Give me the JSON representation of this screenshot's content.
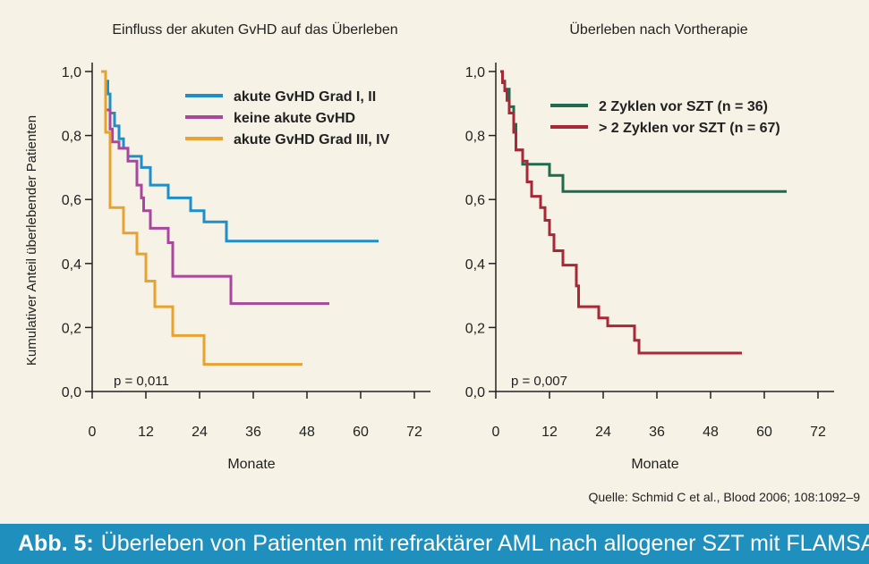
{
  "chart_data": [
    {
      "type": "line",
      "step": true,
      "title": "Einfluss der akuten GvHD auf das Überleben",
      "xlabel": "Monate",
      "ylabel": "Kumulativer Anteil überlebender Patienten",
      "xlim": [
        0,
        72
      ],
      "ylim": [
        0,
        1
      ],
      "xticks": [
        "0",
        "12",
        "24",
        "36",
        "48",
        "60",
        "72"
      ],
      "yticks": [
        "0,0",
        "0,2",
        "0,4",
        "0,6",
        "0,8",
        "1,0"
      ],
      "legend_position": "top-right",
      "annotation": "p = 0,011",
      "series": [
        {
          "name": "akute GvHD Grad I, II",
          "color": "#1f8fc8",
          "points": [
            [
              2,
              1.0
            ],
            [
              3,
              0.97
            ],
            [
              3.5,
              0.93
            ],
            [
              4,
              0.87
            ],
            [
              5,
              0.83
            ],
            [
              6,
              0.79
            ],
            [
              7,
              0.76
            ],
            [
              8,
              0.735
            ],
            [
              11,
              0.7
            ],
            [
              13,
              0.645
            ],
            [
              17,
              0.605
            ],
            [
              22,
              0.565
            ],
            [
              25,
              0.53
            ],
            [
              30,
              0.47
            ],
            [
              64,
              0.47
            ]
          ]
        },
        {
          "name": "keine akute GvHD",
          "color": "#a9479e",
          "points": [
            [
              2.5,
              1.0
            ],
            [
              3,
              0.88
            ],
            [
              4,
              0.82
            ],
            [
              4.5,
              0.78
            ],
            [
              6,
              0.76
            ],
            [
              8,
              0.72
            ],
            [
              10,
              0.645
            ],
            [
              11,
              0.605
            ],
            [
              11.5,
              0.565
            ],
            [
              13,
              0.51
            ],
            [
              17,
              0.465
            ],
            [
              18,
              0.36
            ],
            [
              31,
              0.275
            ],
            [
              53,
              0.275
            ]
          ]
        },
        {
          "name": "akute GvHD Grad III, IV",
          "color": "#e8a22f",
          "points": [
            [
              2,
              1.0
            ],
            [
              3,
              0.81
            ],
            [
              4,
              0.575
            ],
            [
              7,
              0.495
            ],
            [
              10,
              0.43
            ],
            [
              12,
              0.345
            ],
            [
              14,
              0.265
            ],
            [
              18,
              0.175
            ],
            [
              25,
              0.085
            ],
            [
              47,
              0.085
            ]
          ]
        }
      ]
    },
    {
      "type": "line",
      "step": true,
      "title": "Überleben nach Vortherapie",
      "xlabel": "Monate",
      "ylabel": "",
      "xlim": [
        0,
        72
      ],
      "ylim": [
        0,
        1
      ],
      "xticks": [
        "0",
        "12",
        "24",
        "36",
        "48",
        "60",
        "72"
      ],
      "yticks": [
        "0,0",
        "0,2",
        "0,4",
        "0,6",
        "0,8",
        "1,0"
      ],
      "legend_position": "top-right",
      "annotation": "p = 0,007",
      "series": [
        {
          "name": "2 Zyklen vor SZT (n = 36)",
          "color": "#1f6b4f",
          "points": [
            [
              1,
              1.0
            ],
            [
              1.5,
              0.97
            ],
            [
              2,
              0.945
            ],
            [
              3,
              0.89
            ],
            [
              4,
              0.835
            ],
            [
              4.5,
              0.755
            ],
            [
              6,
              0.71
            ],
            [
              12,
              0.675
            ],
            [
              15,
              0.625
            ],
            [
              65,
              0.625
            ]
          ]
        },
        {
          "name": "> 2 Zyklen vor SZT (n = 67)",
          "color": "#a82838",
          "points": [
            [
              1,
              1.0
            ],
            [
              1.5,
              0.965
            ],
            [
              2,
              0.94
            ],
            [
              2.5,
              0.91
            ],
            [
              3,
              0.87
            ],
            [
              4,
              0.81
            ],
            [
              4.5,
              0.755
            ],
            [
              6,
              0.72
            ],
            [
              7,
              0.655
            ],
            [
              8,
              0.61
            ],
            [
              10,
              0.575
            ],
            [
              11,
              0.535
            ],
            [
              12,
              0.49
            ],
            [
              13,
              0.44
            ],
            [
              15,
              0.395
            ],
            [
              18,
              0.33
            ],
            [
              18.5,
              0.265
            ],
            [
              23,
              0.23
            ],
            [
              25,
              0.205
            ],
            [
              31,
              0.16
            ],
            [
              32,
              0.12
            ],
            [
              55,
              0.12
            ]
          ]
        }
      ]
    }
  ],
  "source": "Quelle: Schmid C et al., Blood 2006; 108:1092–9",
  "caption": {
    "label": "Abb. 5:",
    "text": "Überleben von Patienten mit refraktärer AML nach allogener SZT mit FLAMSA-RIC"
  }
}
